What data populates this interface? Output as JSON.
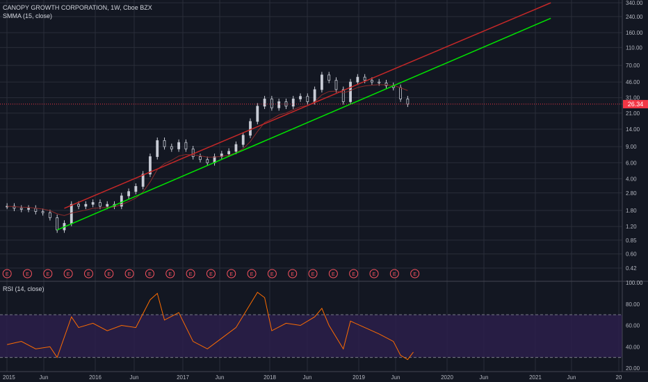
{
  "header": {
    "title": "CANOPY GROWTH CORPORATION, 1W, Cboe BZX",
    "indicator": "SMMA (15, close)",
    "rsi_label": "RSI (14, close)"
  },
  "price_badge": "26.34",
  "colors": {
    "background": "#131722",
    "grid": "#2a2e39",
    "upper_trendline": "#c62828",
    "lower_trendline": "#00e600",
    "price_line": "#f23645",
    "rsi_line": "#ff6d00",
    "rsi_band": "#2b1f4a",
    "smma": "#8a2b2b",
    "candle": "#c8ccd6"
  },
  "chart_data": [
    {
      "type": "candlestick",
      "title": "CANOPY GROWTH CORPORATION, 1W, Cboe BZX",
      "scale": "log",
      "y_ticks": [
        "340.00",
        "240.00",
        "160.00",
        "110.00",
        "70.00",
        "46.00",
        "31.00",
        "21.00",
        "14.00",
        "9.00",
        "6.00",
        "4.00",
        "2.80",
        "1.80",
        "1.20",
        "0.85",
        "0.60",
        "0.42"
      ],
      "x_ticks": [
        "2015",
        "Jun",
        "2016",
        "Jun",
        "2017",
        "Jun",
        "2018",
        "Jun",
        "2019",
        "Jun",
        "2020",
        "Jun",
        "2021",
        "Jun",
        "20"
      ],
      "close_series": [
        {
          "date": "2015-01",
          "value": 2.0
        },
        {
          "date": "2015-02",
          "value": 1.9
        },
        {
          "date": "2015-03",
          "value": 1.85
        },
        {
          "date": "2015-04",
          "value": 1.9
        },
        {
          "date": "2015-05",
          "value": 1.75
        },
        {
          "date": "2015-06",
          "value": 1.7
        },
        {
          "date": "2015-07",
          "value": 1.5
        },
        {
          "date": "2015-08",
          "value": 1.1
        },
        {
          "date": "2015-09",
          "value": 1.3
        },
        {
          "date": "2015-10",
          "value": 2.1
        },
        {
          "date": "2015-11",
          "value": 2.0
        },
        {
          "date": "2015-12",
          "value": 2.1
        },
        {
          "date": "2016-01",
          "value": 2.2
        },
        {
          "date": "2016-02",
          "value": 2.0
        },
        {
          "date": "2016-03",
          "value": 2.1
        },
        {
          "date": "2016-04",
          "value": 2.0
        },
        {
          "date": "2016-05",
          "value": 2.6
        },
        {
          "date": "2016-06",
          "value": 2.9
        },
        {
          "date": "2016-07",
          "value": 3.3
        },
        {
          "date": "2016-08",
          "value": 4.5
        },
        {
          "date": "2016-09",
          "value": 7.0
        },
        {
          "date": "2016-10",
          "value": 10.5
        },
        {
          "date": "2016-11",
          "value": 9.0
        },
        {
          "date": "2016-12",
          "value": 8.5
        },
        {
          "date": "2017-01",
          "value": 10.0
        },
        {
          "date": "2017-02",
          "value": 8.5
        },
        {
          "date": "2017-03",
          "value": 7.0
        },
        {
          "date": "2017-04",
          "value": 6.5
        },
        {
          "date": "2017-05",
          "value": 6.0
        },
        {
          "date": "2017-06",
          "value": 7.0
        },
        {
          "date": "2017-07",
          "value": 7.5
        },
        {
          "date": "2017-08",
          "value": 8.0
        },
        {
          "date": "2017-09",
          "value": 9.5
        },
        {
          "date": "2017-10",
          "value": 12.0
        },
        {
          "date": "2017-11",
          "value": 17.0
        },
        {
          "date": "2017-12",
          "value": 25.0
        },
        {
          "date": "2018-01",
          "value": 30.0
        },
        {
          "date": "2018-02",
          "value": 24.0
        },
        {
          "date": "2018-03",
          "value": 28.0
        },
        {
          "date": "2018-04",
          "value": 25.0
        },
        {
          "date": "2018-05",
          "value": 30.0
        },
        {
          "date": "2018-06",
          "value": 32.0
        },
        {
          "date": "2018-07",
          "value": 28.0
        },
        {
          "date": "2018-08",
          "value": 38.0
        },
        {
          "date": "2018-09",
          "value": 55.0
        },
        {
          "date": "2018-10",
          "value": 48.0
        },
        {
          "date": "2018-11",
          "value": 38.0
        },
        {
          "date": "2018-12",
          "value": 28.0
        },
        {
          "date": "2019-01",
          "value": 46.0
        },
        {
          "date": "2019-02",
          "value": 52.0
        },
        {
          "date": "2019-03",
          "value": 48.0
        },
        {
          "date": "2019-04",
          "value": 46.0
        },
        {
          "date": "2019-05",
          "value": 45.0
        },
        {
          "date": "2019-06",
          "value": 42.0
        },
        {
          "date": "2019-07",
          "value": 40.0
        },
        {
          "date": "2019-08",
          "value": 30.0
        },
        {
          "date": "2019-09",
          "value": 26.34
        }
      ],
      "last_price": 26.34,
      "earnings_marker": "E",
      "earnings_count": 21,
      "trendlines": [
        {
          "name": "upper",
          "color": "#c62828",
          "start": {
            "date": "2015-09",
            "value": 1.9
          },
          "end": {
            "date": "2021-05",
            "value": 340.0
          }
        },
        {
          "name": "lower",
          "color": "#00e600",
          "start": {
            "date": "2015-08",
            "value": 1.1
          },
          "end": {
            "date": "2021-05",
            "value": 230.0
          }
        }
      ]
    },
    {
      "type": "line",
      "title": "RSI (14, close)",
      "y_ticks": [
        "100.00",
        "80.00",
        "60.00",
        "40.00",
        "20.00"
      ],
      "ylim": [
        20,
        100
      ],
      "band": [
        30,
        70
      ],
      "values": [
        {
          "date": "2015-01",
          "value": 42
        },
        {
          "date": "2015-03",
          "value": 45
        },
        {
          "date": "2015-05",
          "value": 38
        },
        {
          "date": "2015-07",
          "value": 40
        },
        {
          "date": "2015-08",
          "value": 30
        },
        {
          "date": "2015-10",
          "value": 68
        },
        {
          "date": "2015-11",
          "value": 58
        },
        {
          "date": "2016-01",
          "value": 62
        },
        {
          "date": "2016-03",
          "value": 55
        },
        {
          "date": "2016-05",
          "value": 60
        },
        {
          "date": "2016-07",
          "value": 58
        },
        {
          "date": "2016-09",
          "value": 84
        },
        {
          "date": "2016-10",
          "value": 90
        },
        {
          "date": "2016-11",
          "value": 65
        },
        {
          "date": "2017-01",
          "value": 72
        },
        {
          "date": "2017-03",
          "value": 45
        },
        {
          "date": "2017-05",
          "value": 38
        },
        {
          "date": "2017-07",
          "value": 48
        },
        {
          "date": "2017-09",
          "value": 58
        },
        {
          "date": "2017-11",
          "value": 80
        },
        {
          "date": "2017-12",
          "value": 91
        },
        {
          "date": "2018-01",
          "value": 86
        },
        {
          "date": "2018-02",
          "value": 55
        },
        {
          "date": "2018-04",
          "value": 62
        },
        {
          "date": "2018-06",
          "value": 60
        },
        {
          "date": "2018-08",
          "value": 68
        },
        {
          "date": "2018-09",
          "value": 76
        },
        {
          "date": "2018-10",
          "value": 60
        },
        {
          "date": "2018-12",
          "value": 38
        },
        {
          "date": "2019-01",
          "value": 64
        },
        {
          "date": "2019-03",
          "value": 58
        },
        {
          "date": "2019-05",
          "value": 52
        },
        {
          "date": "2019-07",
          "value": 45
        },
        {
          "date": "2019-08",
          "value": 32
        },
        {
          "date": "2019-09",
          "value": 28
        },
        {
          "date": "2019-09-25",
          "value": 35
        }
      ]
    }
  ]
}
